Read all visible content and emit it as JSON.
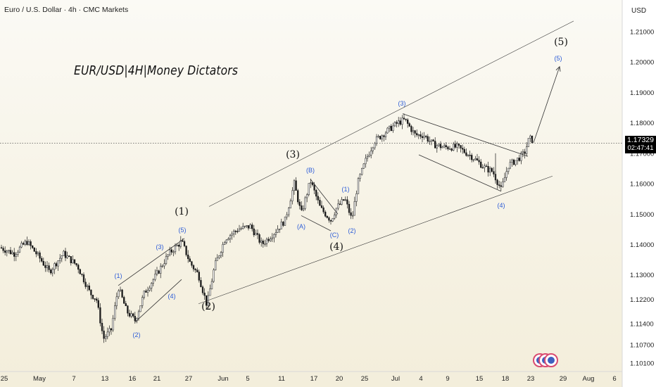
{
  "header": {
    "title": "Euro / U.S. Dollar · 4h · CMC Markets"
  },
  "watermark": "EUR/USD|4H|Money Dictators",
  "axis": {
    "currency": "USD",
    "price_ticks": [
      "1.21000",
      "1.20000",
      "1.19000",
      "1.18000",
      "1.17000",
      "1.16000",
      "1.15000",
      "1.14000",
      "1.13000",
      "1.12200",
      "1.11400",
      "1.10700",
      "1.10100"
    ],
    "date_ticks": [
      "25",
      "May",
      "7",
      "13",
      "16",
      "21",
      "27",
      "Jun",
      "5",
      "11",
      "17",
      "20",
      "25",
      "Jul",
      "4",
      "9",
      "15",
      "18",
      "23",
      "29",
      "Aug",
      "6"
    ]
  },
  "current_price": {
    "value": "1.17329",
    "countdown": "02:47:41"
  },
  "wave_labels": {
    "major": [
      "(1)",
      "(2)",
      "(3)",
      "(4)",
      "(5)"
    ],
    "minor": [
      "(1)",
      "(2)",
      "(3)",
      "(4)",
      "(5)",
      "(A)",
      "(B)",
      "(C)",
      "(1)",
      "(2)",
      "(3)",
      "(4)",
      "(5)"
    ]
  },
  "colors": {
    "candle": "#1a1a1a",
    "minor_label": "#2b5bd7",
    "major_label": "#111111",
    "line": "#333333",
    "price_line": "#555555"
  },
  "chart_data": {
    "type": "line",
    "title": "Euro / U.S. Dollar · 4h · CMC Markets",
    "series": [
      {
        "name": "",
        "x": [
          "Apr 25",
          "May 1",
          "May 7",
          "May 13",
          "May 16",
          "May 21",
          "May 27",
          "Jun 1",
          "Jun 5",
          "Jun 11",
          "Jun 17",
          "Jun 20",
          "Jun 25",
          "Jul 1",
          "Jul 4",
          "Jul 9",
          "Jul 15",
          "Jul 18",
          "Jul 23"
        ],
        "values": [
          1.139,
          1.136,
          1.13,
          1.109,
          1.126,
          1.13,
          1.14,
          1.128,
          1.144,
          1.146,
          1.158,
          1.148,
          1.166,
          1.18,
          1.176,
          1.171,
          1.164,
          1.166,
          1.173
        ]
      }
    ],
    "ylim": [
      1.1,
      1.215
    ],
    "projection": {
      "to": "(5)",
      "value": 1.199
    }
  }
}
